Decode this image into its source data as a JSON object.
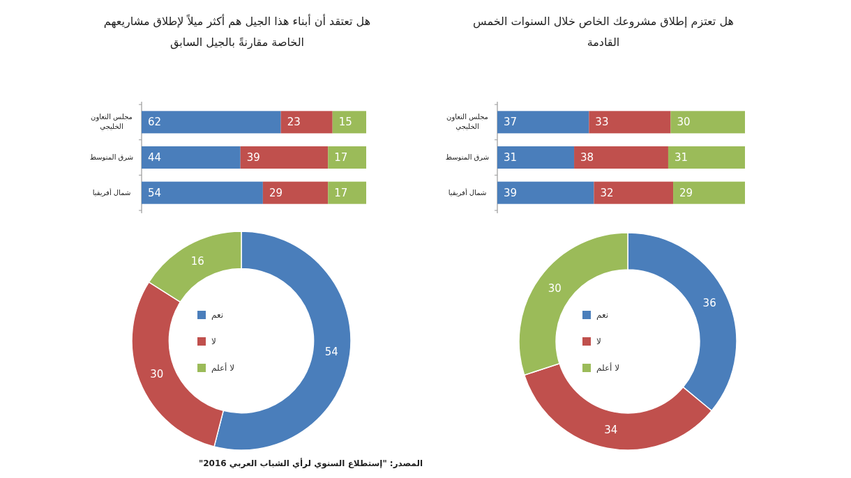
{
  "chart_data": [
    {
      "type": "bar",
      "orientation": "horizontal",
      "stacked": true,
      "data_labels": true,
      "title": "هل تعتزم إطلاق مشروعك الخاص خلال السنوات الخمس القادمة",
      "categories": [
        "مجلس التعاون الخليجي",
        "شرق المتوسط",
        "شمال أفريقيا"
      ],
      "series": [
        {
          "color": "#4a7ebb",
          "values": [
            37,
            31,
            39
          ]
        },
        {
          "color": "#c0504d",
          "values": [
            33,
            38,
            32
          ]
        },
        {
          "color": "#9bbb59",
          "values": [
            30,
            31,
            29
          ]
        }
      ]
    },
    {
      "type": "donut",
      "data_labels": true,
      "legend": "center",
      "categories": [
        "نعم",
        "لا",
        "لا أعلم"
      ],
      "values": [
        36,
        34,
        30
      ],
      "colors": [
        "#4a7ebb",
        "#c0504d",
        "#9bbb59"
      ]
    },
    {
      "type": "bar",
      "orientation": "horizontal",
      "stacked": true,
      "data_labels": true,
      "title": "هل تعتقد أن أبناء هذا الجيل هم أكثر ميلاً لإطلاق مشاريعهم الخاصة مقارنةً بالجيل السابق",
      "categories": [
        "مجلس التعاون الخليجي",
        "شرق المتوسط",
        "شمال أفريقيا"
      ],
      "series": [
        {
          "color": "#4a7ebb",
          "values": [
            62,
            44,
            54
          ]
        },
        {
          "color": "#c0504d",
          "values": [
            23,
            39,
            29
          ]
        },
        {
          "color": "#9bbb59",
          "values": [
            15,
            17,
            17
          ]
        }
      ]
    },
    {
      "type": "donut",
      "data_labels": true,
      "legend": "center",
      "categories": [
        "نعم",
        "لا",
        "لا أعلم"
      ],
      "values": [
        54,
        30,
        16
      ],
      "colors": [
        "#4a7ebb",
        "#c0504d",
        "#9bbb59"
      ],
      "annotations": [
        "المصدر: \"إستطلاع السنوي لرأي الشباب العربي 2016\""
      ]
    }
  ]
}
